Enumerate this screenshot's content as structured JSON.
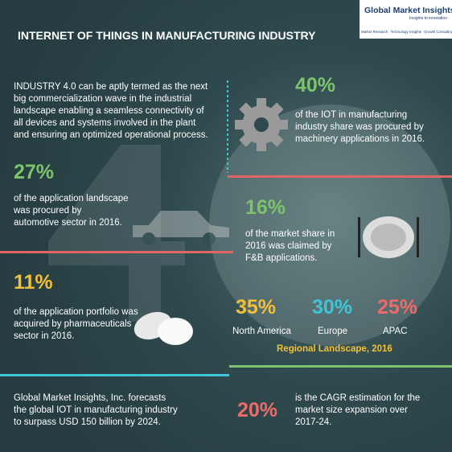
{
  "logo": {
    "name": "Global Market Insights",
    "tagline": "Insights to innovation",
    "items": [
      "Market Research",
      "Technology Insights",
      "Growth Consulting"
    ]
  },
  "title": "INTERNET OF THINGS IN MANUFACTURING INDUSTRY",
  "intro": [
    "INDUSTRY 4.0 can be aptly termed as the next",
    "big commercialization wave in the industrial",
    "landscape enabling a seamless connectivity of",
    "all devices and systems involved in the plant",
    "and ensuring an optimized operational process."
  ],
  "stats": [
    {
      "value": "40%",
      "text": [
        "of the IOT in manufacturing",
        "industry share was procured by",
        "machinery applications in 2016."
      ]
    },
    {
      "value": "27%",
      "text": [
        "of the application landscape",
        "was procured by",
        "automotive sector in 2016."
      ]
    },
    {
      "value": "16%",
      "text": [
        "of the market share in",
        "2016 was claimed by",
        "F&B applications."
      ]
    },
    {
      "value": "11%",
      "text": [
        "of the application portfolio was",
        "acquired by pharmaceuticals",
        "sector in 2016."
      ]
    }
  ],
  "regional": {
    "regions": [
      {
        "value": "35%",
        "name": "North America"
      },
      {
        "value": "30%",
        "name": "Europe"
      },
      {
        "value": "25%",
        "name": "APAC"
      }
    ],
    "caption": "Regional Landscape, 2016"
  },
  "footer": [
    "Global Market Insights, Inc. forecasts",
    "the global IOT in manufacturing industry",
    "to surpass USD 150 billion by 2024."
  ],
  "cagr": {
    "value": "20%",
    "text": [
      "is the CAGR estimation for the",
      "market size expansion over",
      "2017-24."
    ]
  }
}
